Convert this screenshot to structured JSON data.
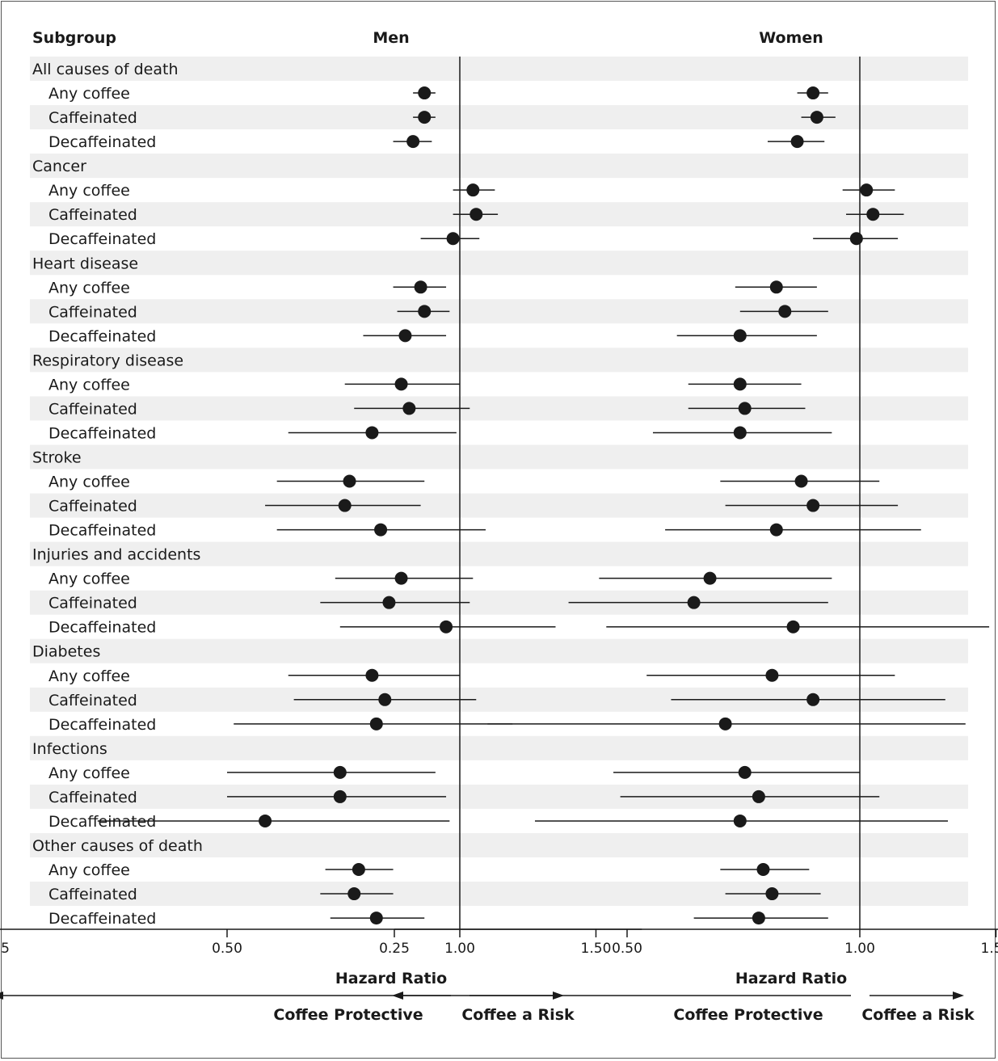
{
  "header": {
    "subgroup": "Subgroup"
  },
  "chart_data": {
    "type": "forest",
    "xlabel": "Hazard Ratio",
    "scale": "log",
    "ticks": [
      0.25,
      0.5,
      1.0,
      1.5
    ],
    "tick_labels": [
      "0.25",
      "0.50",
      "1.00",
      "1.50"
    ],
    "reference_value": 1.0,
    "arrow_left_label": "Coffee Protective",
    "arrow_right_label": "Coffee a Risk",
    "panels": [
      {
        "name": "Men"
      },
      {
        "name": "Women"
      }
    ],
    "groups": [
      {
        "label": "All causes of death",
        "rows": [
          {
            "label": "Any coffee",
            "men": [
              0.9,
              0.87,
              0.93
            ],
            "women": [
              0.87,
              0.83,
              0.91
            ]
          },
          {
            "label": "Caffeinated",
            "men": [
              0.9,
              0.87,
              0.93
            ],
            "women": [
              0.88,
              0.84,
              0.93
            ]
          },
          {
            "label": "Decaffeinated",
            "men": [
              0.87,
              0.82,
              0.92
            ],
            "women": [
              0.83,
              0.76,
              0.9
            ]
          }
        ]
      },
      {
        "label": "Cancer",
        "rows": [
          {
            "label": "Any coffee",
            "men": [
              1.04,
              0.98,
              1.11
            ],
            "women": [
              1.02,
              0.95,
              1.11
            ]
          },
          {
            "label": "Caffeinated",
            "men": [
              1.05,
              0.98,
              1.12
            ],
            "women": [
              1.04,
              0.96,
              1.14
            ]
          },
          {
            "label": "Decaffeinated",
            "men": [
              0.98,
              0.89,
              1.06
            ],
            "women": [
              0.99,
              0.87,
              1.12
            ]
          }
        ]
      },
      {
        "label": "Heart disease",
        "rows": [
          {
            "label": "Any coffee",
            "men": [
              0.89,
              0.82,
              0.96
            ],
            "women": [
              0.78,
              0.69,
              0.88
            ]
          },
          {
            "label": "Caffeinated",
            "men": [
              0.9,
              0.83,
              0.97
            ],
            "women": [
              0.8,
              0.7,
              0.91
            ]
          },
          {
            "label": "Decaffeinated",
            "men": [
              0.85,
              0.75,
              0.96
            ],
            "women": [
              0.7,
              0.58,
              0.88
            ]
          }
        ]
      },
      {
        "label": "Respiratory disease",
        "rows": [
          {
            "label": "Any coffee",
            "men": [
              0.84,
              0.71,
              1.0
            ],
            "women": [
              0.7,
              0.6,
              0.84
            ]
          },
          {
            "label": "Caffeinated",
            "men": [
              0.86,
              0.73,
              1.03
            ],
            "women": [
              0.71,
              0.6,
              0.85
            ]
          },
          {
            "label": "Decaffeinated",
            "men": [
              0.77,
              0.6,
              0.99
            ],
            "women": [
              0.7,
              0.54,
              0.92
            ]
          }
        ]
      },
      {
        "label": "Stroke",
        "rows": [
          {
            "label": "Any coffee",
            "men": [
              0.72,
              0.58,
              0.9
            ],
            "women": [
              0.84,
              0.66,
              1.06
            ]
          },
          {
            "label": "Caffeinated",
            "men": [
              0.71,
              0.56,
              0.89
            ],
            "women": [
              0.87,
              0.67,
              1.12
            ]
          },
          {
            "label": "Decaffeinated",
            "men": [
              0.79,
              0.58,
              1.08
            ],
            "women": [
              0.78,
              0.56,
              1.2
            ]
          }
        ]
      },
      {
        "label": "Injuries and accidents",
        "rows": [
          {
            "label": "Any coffee",
            "men": [
              0.84,
              0.69,
              1.04
            ],
            "women": [
              0.64,
              0.46,
              0.92
            ]
          },
          {
            "label": "Caffeinated",
            "men": [
              0.81,
              0.66,
              1.03
            ],
            "women": [
              0.61,
              0.42,
              0.91
            ]
          },
          {
            "label": "Decaffeinated",
            "men": [
              0.96,
              0.7,
              1.33
            ],
            "women": [
              0.82,
              0.47,
              1.47
            ]
          }
        ]
      },
      {
        "label": "Diabetes",
        "rows": [
          {
            "label": "Any coffee",
            "men": [
              0.77,
              0.6,
              1.0
            ],
            "women": [
              0.77,
              0.53,
              1.11
            ]
          },
          {
            "label": "Caffeinated",
            "men": [
              0.8,
              0.61,
              1.05
            ],
            "women": [
              0.87,
              0.57,
              1.29
            ]
          },
          {
            "label": "Decaffeinated",
            "men": [
              0.78,
              0.51,
              1.17
            ],
            "women": [
              0.67,
              0.33,
              1.37
            ]
          }
        ]
      },
      {
        "label": "Infections",
        "rows": [
          {
            "label": "Any coffee",
            "men": [
              0.7,
              0.5,
              0.93
            ],
            "women": [
              0.71,
              0.48,
              1.0
            ]
          },
          {
            "label": "Caffeinated",
            "men": [
              0.7,
              0.5,
              0.96
            ],
            "women": [
              0.74,
              0.49,
              1.06
            ]
          },
          {
            "label": "Decaffeinated",
            "men": [
              0.56,
              0.34,
              0.97
            ],
            "women": [
              0.7,
              0.38,
              1.3
            ]
          }
        ]
      },
      {
        "label": "Other causes of death",
        "rows": [
          {
            "label": "Any coffee",
            "men": [
              0.74,
              0.67,
              0.82
            ],
            "women": [
              0.75,
              0.66,
              0.86
            ]
          },
          {
            "label": "Caffeinated",
            "men": [
              0.73,
              0.66,
              0.82
            ],
            "women": [
              0.77,
              0.67,
              0.89
            ]
          },
          {
            "label": "Decaffeinated",
            "men": [
              0.78,
              0.68,
              0.9
            ],
            "women": [
              0.74,
              0.61,
              0.91
            ]
          }
        ]
      }
    ]
  }
}
